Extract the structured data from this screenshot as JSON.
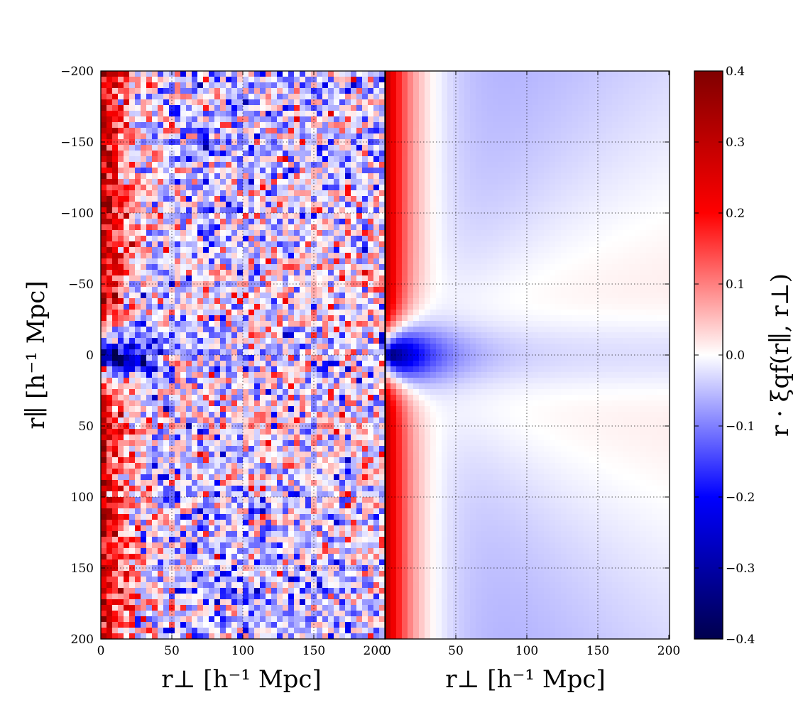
{
  "chart_data": [
    {
      "panel": "left",
      "type": "heatmap",
      "xlabel": "r⊥ [h⁻¹ Mpc]",
      "ylabel": "r∥ [h⁻¹ Mpc]",
      "xlim": [
        0,
        200
      ],
      "ylim": [
        -200,
        200
      ],
      "y_inverted": true,
      "x_ticks": [
        "0",
        "50",
        "100",
        "150",
        "200"
      ],
      "y_ticks": [
        "−200",
        "−150",
        "−100",
        "−50",
        "0",
        "50",
        "100",
        "150",
        "200"
      ],
      "grid": true,
      "bins": {
        "nx": 50,
        "ny": 100,
        "bin_size": 4
      },
      "noise_std": 0.09,
      "seed": 7
    },
    {
      "panel": "right",
      "type": "heatmap",
      "xlabel": "r⊥ [h⁻¹ Mpc]",
      "xlim": [
        0,
        200
      ],
      "ylim": [
        -200,
        200
      ],
      "x_ticks": [
        "0",
        "50",
        "100",
        "150",
        "200"
      ],
      "grid": true,
      "bins": {
        "nx": 50,
        "ny": 100,
        "bin_size": 4
      },
      "noise_std": 0
    }
  ],
  "model": {
    "peak_amplitude": 0.4,
    "trough_amplitude": -0.4,
    "background_amplitude": 0.02
  },
  "colorbar": {
    "label": "r · ξqf(r∥, r⊥)",
    "ticks": [
      "0.4",
      "0.3",
      "0.2",
      "0.1",
      "0.0",
      "−0.1",
      "−0.2",
      "−0.3",
      "−0.4"
    ],
    "range": [
      -0.4,
      0.4
    ],
    "colormap": "seismic",
    "colors": {
      "low": "#00004d",
      "mid_low": "#0000ff",
      "center": "#ffffff",
      "mid_high": "#ff0000",
      "high": "#800000"
    }
  }
}
